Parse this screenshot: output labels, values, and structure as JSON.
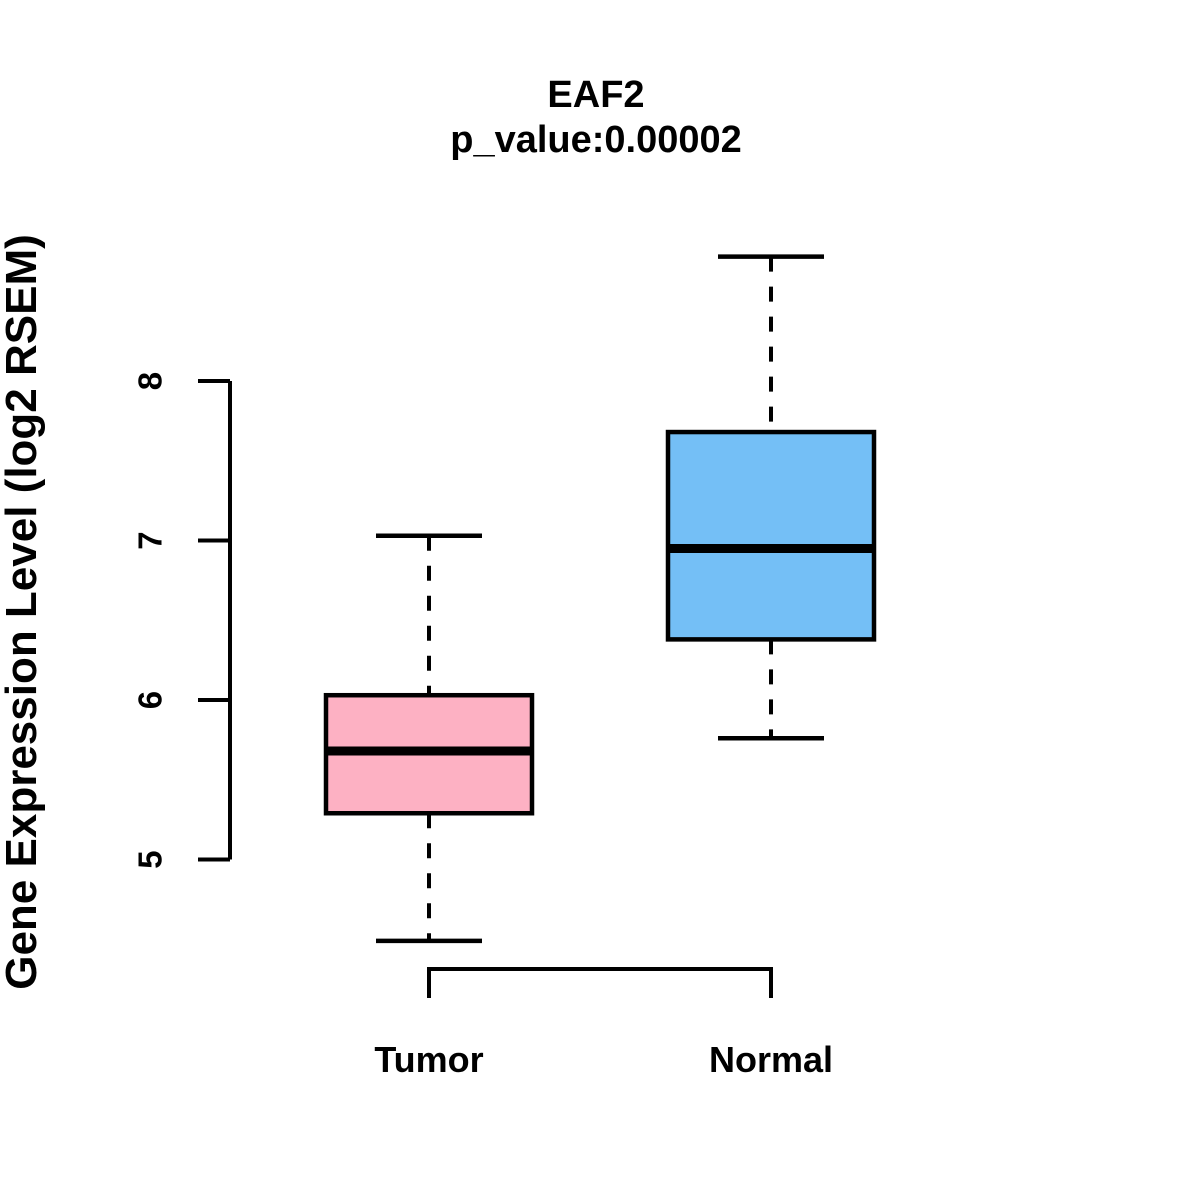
{
  "figure": {
    "background": "#ffffff",
    "stroke_color": "#000000"
  },
  "chart_data": {
    "type": "boxplot",
    "title": "EAF2",
    "subtitle": "p_value:0.00002",
    "ylabel": "Gene Expression Level (log2 RSEM)",
    "xlabel": "",
    "categories": [
      "Tumor",
      "Normal"
    ],
    "series": [
      {
        "name": "Tumor",
        "lower_whisker": 4.49,
        "q1": 5.29,
        "median": 5.68,
        "q3": 6.03,
        "upper_whisker": 7.03,
        "fill": "#FDB1C3"
      },
      {
        "name": "Normal",
        "lower_whisker": 5.76,
        "q1": 6.38,
        "median": 6.95,
        "q3": 7.68,
        "upper_whisker": 8.78,
        "fill": "#74BFF6"
      }
    ],
    "yticks": [
      5,
      6,
      7,
      8
    ],
    "ylim": [
      4.3,
      8.9
    ],
    "grid": false,
    "legend": "none",
    "whisker_style": "dashed",
    "box_border_color": "#000000",
    "median_color": "#000000"
  }
}
